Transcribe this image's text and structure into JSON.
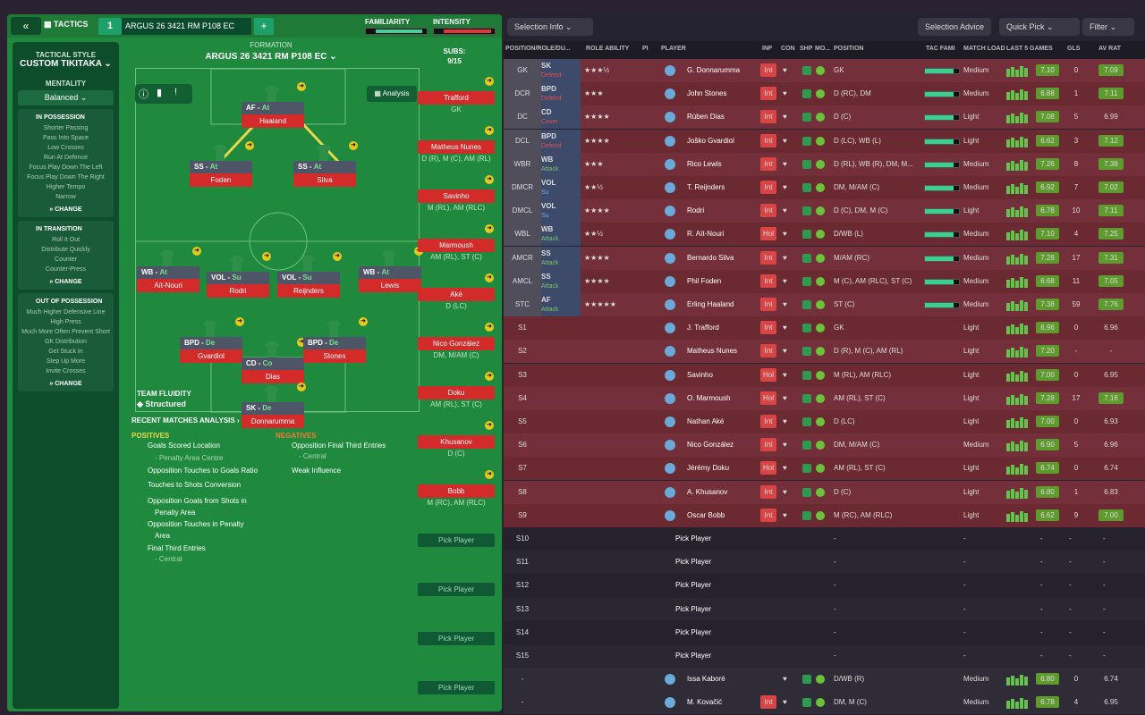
{
  "topbar": {
    "tactics_label": "TACTICS",
    "slot_number": "1",
    "tactic_name": "ARGUS 26 3421 RM P108 EC",
    "familiarity_label": "FAMILIARITY",
    "intensity_label": "INTENSITY",
    "familiarity_fraction": 0.92,
    "intensity_fraction": 0.95
  },
  "sidebar": {
    "style_label": "TACTICAL STYLE",
    "style_value": "CUSTOM TIKITAKA",
    "mentality_label": "MENTALITY",
    "mentality_value": "Balanced",
    "in_possession": {
      "title": "IN POSSESSION",
      "items": [
        "Shorter Passing",
        "Pass Into Space",
        "Low Crosses",
        "Run At Defence",
        "Focus Play Down The Left",
        "Focus Play Down The Right",
        "Higher Tempo",
        "Narrow"
      ],
      "change": "CHANGE"
    },
    "in_transition": {
      "title": "IN TRANSITION",
      "items": [
        "Roll It Out",
        "Distribute Quickly",
        "Counter",
        "Counter-Press"
      ],
      "change": "CHANGE"
    },
    "out_of_possession": {
      "title": "OUT OF POSSESSION",
      "items": [
        "Much Higher Defensive Line",
        "High Press",
        "Much More Often Prevent Short GK Distribution",
        "Get Stuck In",
        "Step Up More",
        "Invite Crosses"
      ],
      "change": "CHANGE"
    }
  },
  "formation": {
    "label": "FORMATION",
    "name": "ARGUS 26 3421 RM P108 EC",
    "analysis": "Analysis",
    "subs_label": "SUBS:",
    "subs_count": "9/15",
    "fluidity_label": "TEAM FLUIDITY",
    "fluidity_value": "Structured"
  },
  "pitch_players": [
    {
      "role": "AF",
      "duty": "At",
      "name": "Haaland"
    },
    {
      "role": "SS",
      "duty": "At",
      "name": "Foden"
    },
    {
      "role": "SS",
      "duty": "At",
      "name": "Silva"
    },
    {
      "role": "WB",
      "duty": "At",
      "name": "Aït-Nouri"
    },
    {
      "role": "VOL",
      "duty": "Su",
      "name": "Rodri"
    },
    {
      "role": "VOL",
      "duty": "Su",
      "name": "Reijnders"
    },
    {
      "role": "WB",
      "duty": "At",
      "name": "Lewis"
    },
    {
      "role": "BPD",
      "duty": "De",
      "name": "Gvardiol"
    },
    {
      "role": "CD",
      "duty": "Co",
      "name": "Dias"
    },
    {
      "role": "BPD",
      "duty": "De",
      "name": "Stones"
    },
    {
      "role": "SK",
      "duty": "De",
      "name": "Donnarumma"
    }
  ],
  "subs": [
    {
      "name": "Trafford",
      "pos": "GK"
    },
    {
      "name": "Matheus Nunes",
      "pos": "D (R), M (C), AM (RL)"
    },
    {
      "name": "Savinho",
      "pos": "M (RL), AM (RLC)"
    },
    {
      "name": "Marmoush",
      "pos": "AM (RL), ST (C)"
    },
    {
      "name": "Aké",
      "pos": "D (LC)"
    },
    {
      "name": "Nico González",
      "pos": "DM, M/AM (C)"
    },
    {
      "name": "Doku",
      "pos": "AM (RL), ST (C)"
    },
    {
      "name": "Khusanov",
      "pos": "D (C)"
    },
    {
      "name": "Bobb",
      "pos": "M (RC), AM (RLC)"
    }
  ],
  "pick_player": "Pick Player",
  "recent": {
    "title": "RECENT MATCHES ANALYSIS",
    "positives_label": "POSITIVES",
    "negatives_label": "NEGATIVES",
    "positives": [
      "Goals Scored Location",
      "- Penalty Area Centre",
      "Opposition Touches to Goals Ratio",
      "Touches to Shots Conversion",
      "Opposition Goals from Shots in",
      "Penalty Area",
      "Opposition Touches in Penalty",
      "Area",
      "Final Third Entries",
      "- Central"
    ],
    "negatives": [
      "Opposition Final Third Entries",
      "- Central",
      "Weak Influence"
    ]
  },
  "right": {
    "selection_info": "Selection Info",
    "selection_advice": "Selection Advice",
    "quick_pick": "Quick Pick",
    "filter": "Filter",
    "headers": [
      "POSITION/ROLE/DU...",
      "ROLE ABILITY",
      "PI",
      "PLAYER",
      "INF",
      "CON",
      "SHP",
      "MO...",
      "POSITION",
      "TAC FAMI",
      "MATCH LOAD",
      "LAST 5 GAMES",
      "GLS",
      "AV RAT"
    ],
    "rows": [
      {
        "pos": "GK",
        "role": "SK",
        "duty": "Defend",
        "stars": "★★★½",
        "player": "G. Donnarumma",
        "inf": "Int",
        "position": "GK",
        "load": "Medium",
        "rat": "7.10",
        "gls": "0",
        "avr": "7.09"
      },
      {
        "pos": "DCR",
        "role": "BPD",
        "duty": "Defend",
        "stars": "★★★",
        "player": "John Stones",
        "inf": "Int",
        "position": "D (RC), DM",
        "load": "Medium",
        "rat": "6.88",
        "gls": "1",
        "avr": "7.11"
      },
      {
        "pos": "DC",
        "role": "CD",
        "duty": "Cover",
        "stars": "★★★★",
        "player": "Rúben Dias",
        "inf": "Int",
        "position": "D (C)",
        "load": "Light",
        "rat": "7.08",
        "gls": "5",
        "avr": "6.99"
      },
      {
        "pos": "DCL",
        "role": "BPD",
        "duty": "Defend",
        "stars": "★★★★",
        "player": "Joško Gvardiol",
        "inf": "Int",
        "position": "D (LC), WB (L)",
        "load": "Light",
        "rat": "6.62",
        "gls": "3",
        "avr": "7.12"
      },
      {
        "pos": "WBR",
        "role": "WB",
        "duty": "Attack",
        "stars": "★★★",
        "player": "Rico Lewis",
        "inf": "Int",
        "position": "D (RL), WB (R), DM, M...",
        "load": "Medium",
        "rat": "7.26",
        "gls": "8",
        "avr": "7.38"
      },
      {
        "pos": "DMCR",
        "role": "VOL",
        "duty": "Su",
        "stars": "★★½",
        "player": "T. Reijnders",
        "inf": "Int",
        "position": "DM, M/AM (C)",
        "load": "Medium",
        "rat": "6.92",
        "gls": "7",
        "avr": "7.02"
      },
      {
        "pos": "DMCL",
        "role": "VOL",
        "duty": "Su",
        "stars": "★★★★",
        "player": "Rodri",
        "inf": "Int",
        "position": "D (C), DM, M (C)",
        "load": "Light",
        "rat": "6.78",
        "gls": "10",
        "avr": "7.11"
      },
      {
        "pos": "WBL",
        "role": "WB",
        "duty": "Attack",
        "stars": "★★½",
        "player": "R. Aït-Nouri",
        "inf": "Hol",
        "position": "D/WB (L)",
        "load": "Medium",
        "rat": "7.10",
        "gls": "4",
        "avr": "7.25"
      },
      {
        "pos": "AMCR",
        "role": "SS",
        "duty": "Attack",
        "stars": "★★★★",
        "player": "Bernardo Silva",
        "inf": "Int",
        "position": "M/AM (RC)",
        "load": "Medium",
        "rat": "7.28",
        "gls": "17",
        "avr": "7.31"
      },
      {
        "pos": "AMCL",
        "role": "SS",
        "duty": "Attack",
        "stars": "★★★★",
        "player": "Phil Foden",
        "inf": "Int",
        "position": "M (C), AM (RLC), ST (C)",
        "load": "Medium",
        "rat": "6.68",
        "gls": "11",
        "avr": "7.05"
      },
      {
        "pos": "STC",
        "role": "AF",
        "duty": "Attack",
        "stars": "★★★★★",
        "player": "Erling Haaland",
        "inf": "Int",
        "position": "ST (C)",
        "load": "Medium",
        "rat": "7.38",
        "gls": "59",
        "avr": "7.76"
      },
      {
        "pos": "S1",
        "role": "",
        "duty": "",
        "stars": "",
        "player": "J. Trafford",
        "inf": "Int",
        "position": "GK",
        "load": "Light",
        "rat": "6.96",
        "gls": "0",
        "avr": "6.96"
      },
      {
        "pos": "S2",
        "role": "",
        "duty": "",
        "stars": "",
        "player": "Matheus Nunes",
        "inf": "Int",
        "position": "D (R), M (C), AM (RL)",
        "load": "Light",
        "rat": "7.20",
        "gls": "-",
        "avr": "-"
      },
      {
        "pos": "S3",
        "role": "",
        "duty": "",
        "stars": "",
        "player": "Savinho",
        "inf": "Hol",
        "position": "M (RL), AM (RLC)",
        "load": "Light",
        "rat": "7.00",
        "gls": "0",
        "avr": "6.95"
      },
      {
        "pos": "S4",
        "role": "",
        "duty": "",
        "stars": "",
        "player": "O. Marmoush",
        "inf": "Hol",
        "position": "AM (RL), ST (C)",
        "load": "Light",
        "rat": "7.28",
        "gls": "17",
        "avr": "7.16"
      },
      {
        "pos": "S5",
        "role": "",
        "duty": "",
        "stars": "",
        "player": "Nathan Aké",
        "inf": "Int",
        "position": "D (LC)",
        "load": "Light",
        "rat": "7.00",
        "gls": "0",
        "avr": "6.93"
      },
      {
        "pos": "S6",
        "role": "",
        "duty": "",
        "stars": "",
        "player": "Nico González",
        "inf": "Int",
        "position": "DM, M/AM (C)",
        "load": "Medium",
        "rat": "6.90",
        "gls": "5",
        "avr": "6.96"
      },
      {
        "pos": "S7",
        "role": "",
        "duty": "",
        "stars": "",
        "player": "Jérémy Doku",
        "inf": "Hol",
        "position": "AM (RL), ST (C)",
        "load": "Light",
        "rat": "6.74",
        "gls": "0",
        "avr": "6.74"
      },
      {
        "pos": "S8",
        "role": "",
        "duty": "",
        "stars": "",
        "player": "A. Khusanov",
        "inf": "Int",
        "position": "D (C)",
        "load": "Light",
        "rat": "6.80",
        "gls": "1",
        "avr": "6.83"
      },
      {
        "pos": "S9",
        "role": "",
        "duty": "",
        "stars": "",
        "player": "Oscar Bobb",
        "inf": "Int",
        "position": "M (RC), AM (RLC)",
        "load": "Light",
        "rat": "6.62",
        "gls": "9",
        "avr": "7.00"
      },
      {
        "pos": "S10",
        "empty": true
      },
      {
        "pos": "S11",
        "empty": true
      },
      {
        "pos": "S12",
        "empty": true
      },
      {
        "pos": "S13",
        "empty": true
      },
      {
        "pos": "S14",
        "empty": true
      },
      {
        "pos": "S15",
        "empty": true
      },
      {
        "pos": "-",
        "role": "",
        "duty": "",
        "stars": "",
        "player": "Issa Kaboré",
        "inf": "",
        "position": "D/WB (R)",
        "load": "Medium",
        "rat": "6.80",
        "gls": "0",
        "avr": "6.74"
      },
      {
        "pos": "-",
        "role": "",
        "duty": "",
        "stars": "",
        "player": "M. Kovačić",
        "inf": "Int",
        "position": "DM, M (C)",
        "load": "Medium",
        "rat": "6.78",
        "gls": "4",
        "avr": "6.95"
      }
    ],
    "dash": "-"
  }
}
